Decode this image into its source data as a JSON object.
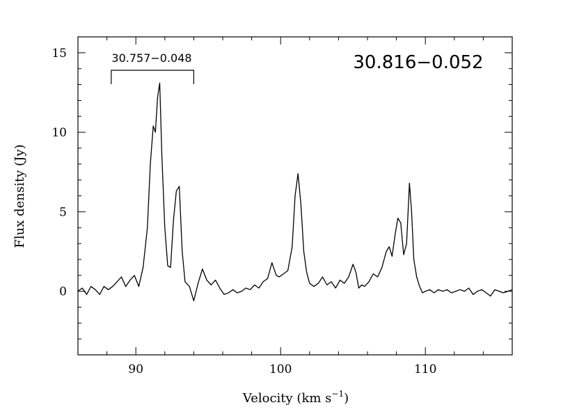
{
  "chart_data": {
    "type": "line",
    "title": "",
    "xlabel": "Velocity (km s",
    "xlabel_sup": "−1",
    "xlabel_close": ")",
    "ylabel": "Flux density (Jy)",
    "xlim": [
      86,
      116
    ],
    "ylim": [
      -4,
      16
    ],
    "x_ticks": [
      90,
      100,
      110
    ],
    "y_ticks": [
      0,
      5,
      10,
      15
    ],
    "grid": false,
    "annotations": {
      "source_label": "30.816−0.052",
      "bracket_label": "30.757−0.048",
      "bracket_range": [
        88.3,
        94.0
      ]
    },
    "series": [
      {
        "color": "#000000",
        "x": [
          86.0,
          86.3,
          86.6,
          86.9,
          87.2,
          87.5,
          87.8,
          88.1,
          88.4,
          88.7,
          89.0,
          89.3,
          89.6,
          89.9,
          90.2,
          90.5,
          90.8,
          91.0,
          91.2,
          91.35,
          91.5,
          91.65,
          91.8,
          92.0,
          92.2,
          92.4,
          92.6,
          92.8,
          93.0,
          93.2,
          93.4,
          93.7,
          94.0,
          94.3,
          94.6,
          94.9,
          95.2,
          95.5,
          95.8,
          96.1,
          96.4,
          96.7,
          97.0,
          97.3,
          97.6,
          97.9,
          98.2,
          98.5,
          98.8,
          99.1,
          99.4,
          99.7,
          99.9,
          100.2,
          100.5,
          100.8,
          101.0,
          101.2,
          101.4,
          101.6,
          101.8,
          102.0,
          102.3,
          102.6,
          102.9,
          103.2,
          103.5,
          103.8,
          104.1,
          104.4,
          104.7,
          105.0,
          105.2,
          105.4,
          105.6,
          105.8,
          106.1,
          106.4,
          106.7,
          107.0,
          107.3,
          107.5,
          107.7,
          107.9,
          108.1,
          108.3,
          108.5,
          108.7,
          108.9,
          109.05,
          109.2,
          109.4,
          109.6,
          109.8,
          110.0,
          110.3,
          110.6,
          110.9,
          111.2,
          111.5,
          111.8,
          112.1,
          112.4,
          112.7,
          113.0,
          113.3,
          113.6,
          113.9,
          114.2,
          114.5,
          114.8,
          115.1,
          115.4,
          115.7,
          116.0
        ],
        "y": [
          0.0,
          0.2,
          -0.2,
          0.3,
          0.1,
          -0.2,
          0.3,
          0.1,
          0.3,
          0.6,
          0.9,
          0.3,
          0.7,
          1.0,
          0.3,
          1.5,
          4.0,
          8.0,
          10.4,
          10.0,
          12.2,
          13.1,
          8.5,
          4.0,
          1.6,
          1.5,
          4.5,
          6.3,
          6.6,
          2.5,
          0.6,
          0.3,
          -0.6,
          0.5,
          1.4,
          0.7,
          0.4,
          0.7,
          0.2,
          -0.2,
          -0.1,
          0.1,
          -0.1,
          0.0,
          0.2,
          0.1,
          0.4,
          0.2,
          0.6,
          0.8,
          1.8,
          1.0,
          0.9,
          1.1,
          1.3,
          2.8,
          6.0,
          7.4,
          5.5,
          2.5,
          1.2,
          0.5,
          0.3,
          0.5,
          0.9,
          0.4,
          0.6,
          0.2,
          0.7,
          0.5,
          0.9,
          1.7,
          1.2,
          0.2,
          0.4,
          0.3,
          0.6,
          1.1,
          0.9,
          1.5,
          2.5,
          2.8,
          2.2,
          3.5,
          4.6,
          4.3,
          2.3,
          3.0,
          6.8,
          5.0,
          2.0,
          0.9,
          0.3,
          -0.1,
          0.0,
          0.1,
          -0.1,
          0.1,
          0.0,
          0.1,
          -0.1,
          0.0,
          0.1,
          0.0,
          0.2,
          -0.2,
          0.0,
          0.1,
          -0.1,
          -0.3,
          0.1,
          0.0,
          -0.1,
          0.0,
          0.1
        ]
      }
    ]
  }
}
